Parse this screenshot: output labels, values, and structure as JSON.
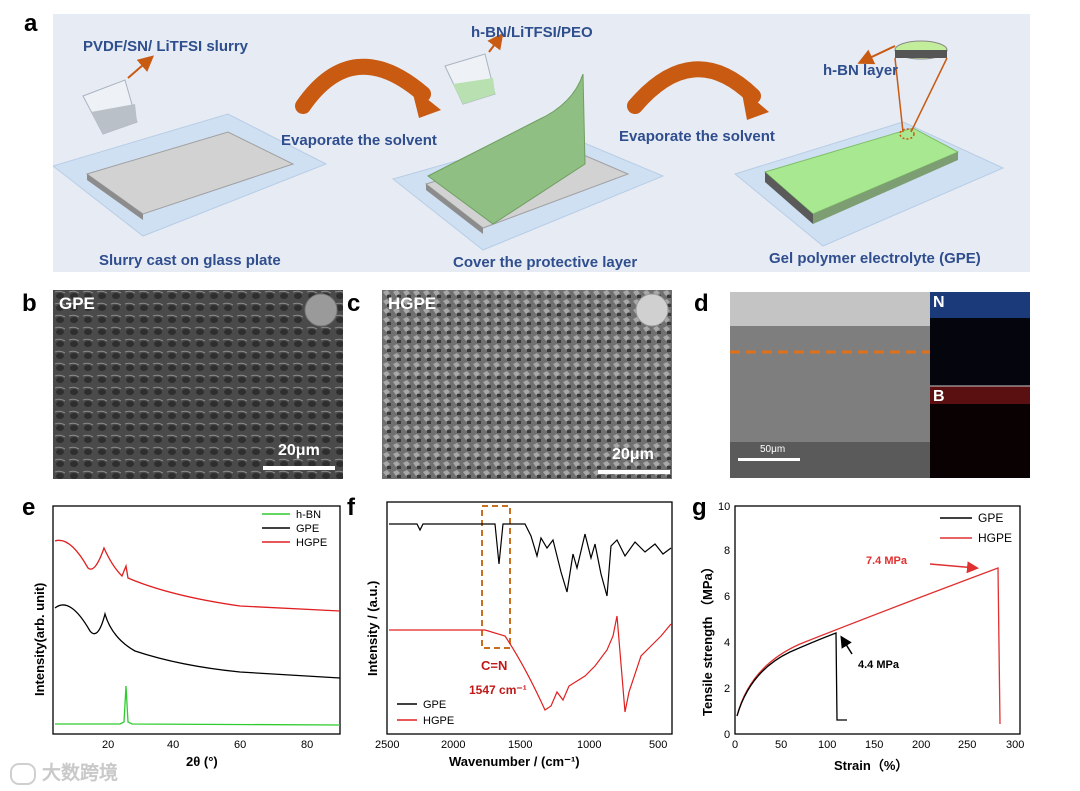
{
  "panel_labels": {
    "a": "a",
    "b": "b",
    "c": "c",
    "d": "d",
    "e": "e",
    "f": "f",
    "g": "g"
  },
  "schematic": {
    "slurry_label": "PVDF/SN/ LiTFSI  slurry",
    "coating_label": "h-BN/LiTFSI/PEO",
    "hbn_layer_label": "h-BN layer",
    "arrow1_label": "Evaporate the solvent",
    "arrow2_label": "Evaporate the solvent",
    "step1": "Slurry cast on glass plate",
    "step2": "Cover the protective layer",
    "step3": "Gel polymer electrolyte (GPE)",
    "colors": {
      "glass": "#cfe0f3",
      "film": "#c8c8c8",
      "green": "#a8dc90",
      "arrow": "#c85a12",
      "text": "#2f4e8e"
    }
  },
  "sem": {
    "b": {
      "tag": "GPE",
      "scale": "20μm"
    },
    "c": {
      "tag": "HGPE",
      "scale": "20μm"
    },
    "d": {
      "scale": "50μm",
      "map_n": "N",
      "map_b": "B"
    }
  },
  "chart_data": [
    {
      "panel": "e",
      "type": "line",
      "xlabel": "2θ (°)",
      "ylabel": "Intensity(arb. unit)",
      "xlim": [
        5,
        90
      ],
      "xticks": [
        "20",
        "40",
        "60",
        "80"
      ],
      "legend": [
        "h-BN",
        "GPE",
        "HGPE"
      ],
      "series": [
        {
          "name": "h-BN",
          "color": "#2ecc2e",
          "peaks": [
            {
              "x": 26.7,
              "height": "sharp"
            }
          ]
        },
        {
          "name": "GPE",
          "color": "#000000",
          "peaks": [
            {
              "x": 20.5,
              "height": "broad"
            }
          ]
        },
        {
          "name": "HGPE",
          "color": "#e02020",
          "peaks": [
            {
              "x": 20.5,
              "height": "broad"
            },
            {
              "x": 26.7,
              "height": "sharp"
            }
          ]
        }
      ]
    },
    {
      "panel": "f",
      "type": "line",
      "xlabel": "Wavenumber / (cm⁻¹)",
      "ylabel": "Intensity / (a.u.)",
      "xlim": [
        2500,
        400
      ],
      "xticks": [
        "2500",
        "2000",
        "1500",
        "1000",
        "500"
      ],
      "legend": [
        "GPE",
        "HGPE"
      ],
      "annotation": "C=N",
      "annotation2": "1547 cm⁻¹",
      "highlight_range": [
        1750,
        1590
      ]
    },
    {
      "panel": "g",
      "type": "line",
      "xlabel": "Strain（%）",
      "ylabel": "Tensile strength （MPa）",
      "xlim": [
        0,
        300
      ],
      "ylim": [
        0,
        10
      ],
      "xticks": [
        "0",
        "50",
        "100",
        "150",
        "200",
        "250",
        "300"
      ],
      "yticks": [
        "0",
        "2",
        "4",
        "6",
        "8",
        "10"
      ],
      "legend": [
        "GPE",
        "HGPE"
      ],
      "annotations": [
        "7.4 MPa",
        "4.4 MPa"
      ],
      "series": [
        {
          "name": "GPE",
          "color": "#000000",
          "max_strain": 106,
          "max_stress": 4.4
        },
        {
          "name": "HGPE",
          "color": "#e03030",
          "max_strain": 277,
          "max_stress": 7.4
        }
      ]
    }
  ],
  "watermark": "大数跨境"
}
